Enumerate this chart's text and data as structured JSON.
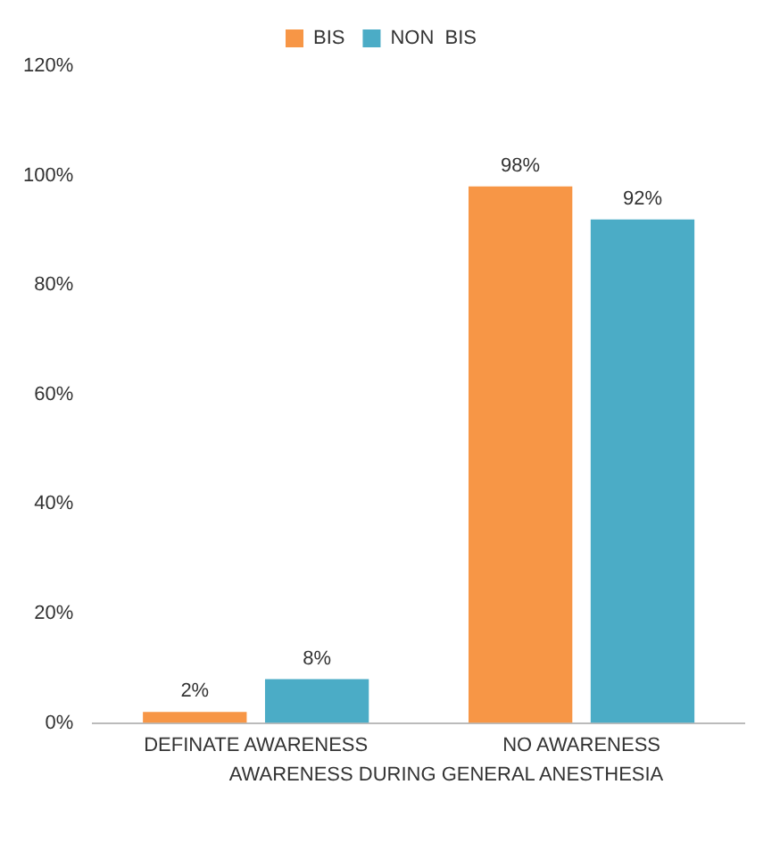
{
  "chart_data": {
    "type": "bar",
    "xlabel": "AWARENESS DURING GENERAL ANESTHESIA",
    "categories": [
      "DEFINATE AWARENESS",
      "NO AWARENESS"
    ],
    "series": [
      {
        "name": "BIS",
        "color": "#f79646",
        "values": [
          2,
          98
        ],
        "value_labels": [
          "2%",
          "98%"
        ]
      },
      {
        "name": "NON  BIS",
        "color": "#4bacc6",
        "values": [
          8,
          92
        ],
        "value_labels": [
          "8%",
          "92%"
        ]
      }
    ],
    "ylim": [
      0,
      120
    ],
    "yticks": [
      {
        "value": 0,
        "label": "0%"
      },
      {
        "value": 20,
        "label": "20%"
      },
      {
        "value": 40,
        "label": "40%"
      },
      {
        "value": 60,
        "label": "60%"
      },
      {
        "value": 80,
        "label": "80%"
      },
      {
        "value": 100,
        "label": "100%"
      },
      {
        "value": 120,
        "label": "120%"
      }
    ],
    "grid": false,
    "legend": "top"
  }
}
